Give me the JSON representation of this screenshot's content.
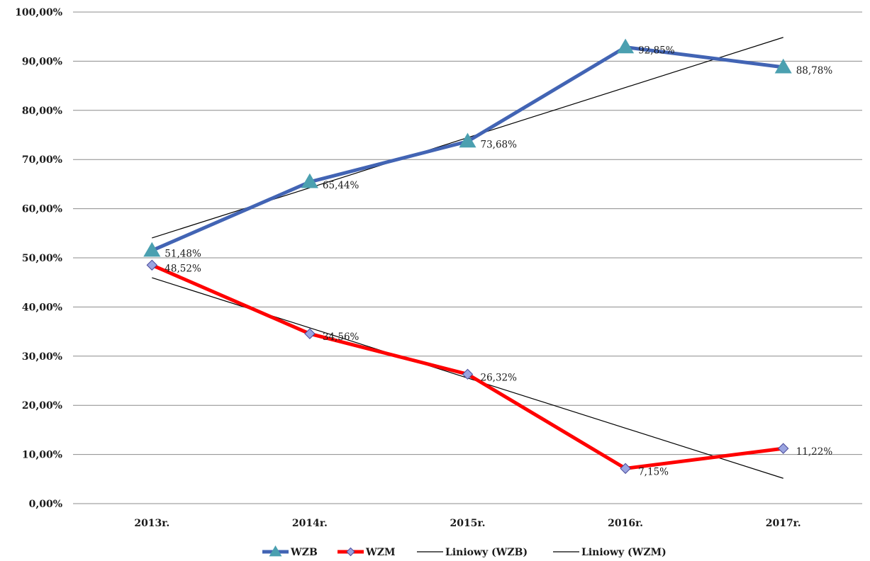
{
  "chart_data": {
    "type": "line",
    "categories": [
      "2013r.",
      "2014r.",
      "2015r.",
      "2016r.",
      "2017r."
    ],
    "ylim": [
      0,
      100
    ],
    "y_ticks": [
      0,
      10,
      20,
      30,
      40,
      50,
      60,
      70,
      80,
      90,
      100
    ],
    "y_tick_labels": [
      "0,00%",
      "10,00%",
      "20,00%",
      "30,00%",
      "40,00%",
      "50,00%",
      "60,00%",
      "70,00%",
      "80,00%",
      "90,00%",
      "100,00%"
    ],
    "grid": true,
    "legend_position": "bottom",
    "series": [
      {
        "name": "WZB",
        "values": [
          51.48,
          65.44,
          73.68,
          92.85,
          88.78
        ],
        "labels": [
          "51,48%",
          "65,44%",
          "73,68%",
          "92,85%",
          "88,78%"
        ],
        "color": "#4264b4",
        "marker": "triangle",
        "marker_color": "#4ba0b0"
      },
      {
        "name": "WZM",
        "values": [
          48.52,
          34.56,
          26.32,
          7.15,
          11.22
        ],
        "labels": [
          "48,52%",
          "34,56%",
          "26,32%",
          "7,15%",
          "11,22%"
        ],
        "color": "#ff0000",
        "marker": "diamond",
        "marker_color": "#9aa4e0"
      }
    ],
    "trendlines": [
      {
        "name": "Liniowy (WZB)",
        "of": "WZB",
        "type": "linear",
        "color": "#000000"
      },
      {
        "name": "Liniowy (WZM)",
        "of": "WZM",
        "type": "linear",
        "color": "#000000"
      }
    ]
  }
}
